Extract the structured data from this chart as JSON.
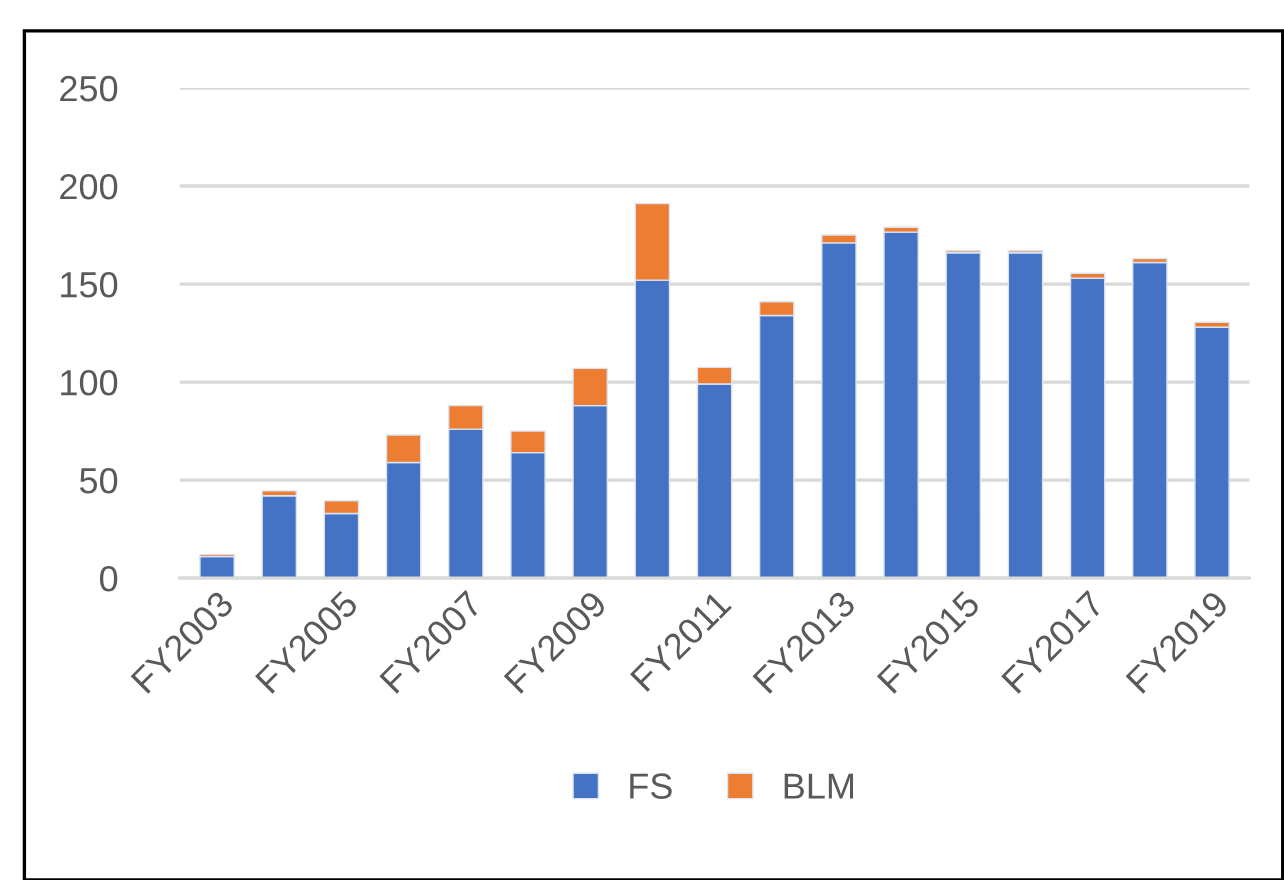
{
  "chart_data": {
    "type": "bar",
    "stacked": true,
    "categories": [
      "FY2003",
      null,
      "FY2005",
      null,
      "FY2007",
      null,
      "FY2009",
      null,
      "FY2011",
      null,
      "FY2013",
      null,
      "FY2015",
      null,
      "FY2017",
      null,
      "FY2019"
    ],
    "series": [
      {
        "name": "FS",
        "color": "#4472c4",
        "values": [
          11,
          42,
          33,
          59,
          76,
          64,
          88,
          152,
          99,
          134,
          171,
          176.5,
          166,
          166,
          153,
          161,
          128
        ]
      },
      {
        "name": "BLM",
        "color": "#ed7d31",
        "values": [
          1,
          2.5,
          6.5,
          14,
          12,
          11,
          19,
          39,
          8.5,
          7,
          4,
          2.5,
          1,
          1,
          2.5,
          2,
          2.5
        ]
      }
    ],
    "ylim": [
      0,
      250
    ],
    "yticks": [
      0,
      50,
      100,
      150,
      200,
      250
    ],
    "grid": "y",
    "legend": "bottom"
  }
}
